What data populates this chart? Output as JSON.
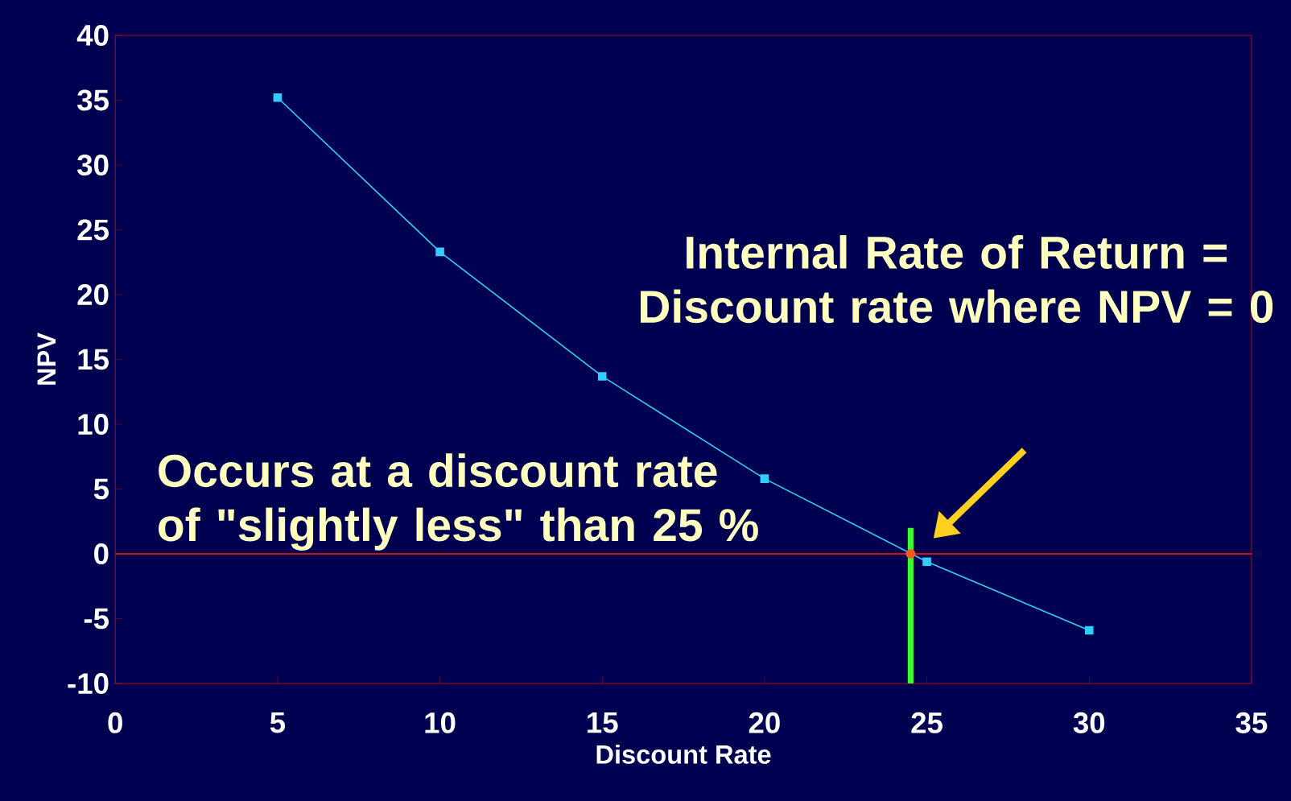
{
  "chart_data": {
    "type": "line",
    "xlabel": "Discount Rate",
    "ylabel": "NPV",
    "x": [
      5,
      10,
      15,
      20,
      25,
      30
    ],
    "series": [
      {
        "color": "#33ccff",
        "values": [
          35.2,
          23.3,
          13.7,
          5.8,
          -0.6,
          -5.9
        ],
        "marker": "square"
      },
      {
        "type": "scatter",
        "color": "#ff5a1e",
        "x": [
          24.5
        ],
        "values": [
          0
        ],
        "marker": "circle"
      }
    ],
    "xlim": [
      0,
      35
    ],
    "xticks": [
      0,
      5,
      10,
      15,
      20,
      25,
      30,
      35
    ],
    "ylim": [
      -10,
      40
    ],
    "yticks": [
      -10,
      -5,
      0,
      5,
      10,
      15,
      20,
      25,
      30,
      35,
      40
    ],
    "ref_lines": [
      {
        "axis": "x",
        "value": 24.5,
        "color": "#33ff33"
      },
      {
        "axis": "y",
        "value": 0,
        "color": "#d01010"
      }
    ],
    "annotations": [
      "Internal Rate of Return = Discount rate where NPV = 0",
      "Occurs at a discount rate of \"slightly less\" than 25 %"
    ]
  }
}
